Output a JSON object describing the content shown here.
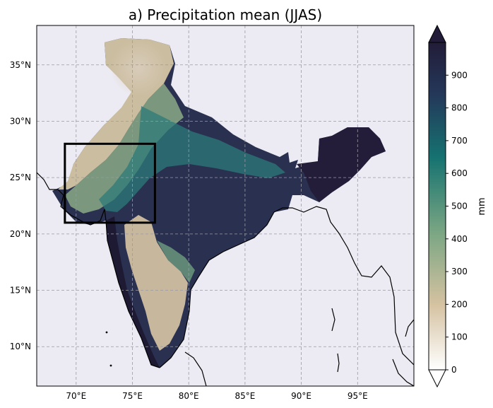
{
  "figure": {
    "title": "a) Precipitation mean (JJAS)"
  },
  "map": {
    "background_color": "#ecebf3",
    "longitude_range": [
      66.5,
      100.0
    ],
    "latitude_range": [
      6.5,
      38.5
    ],
    "x_ticks": [
      70,
      75,
      80,
      85,
      90,
      95
    ],
    "x_tick_labels": [
      "70°E",
      "75°E",
      "80°E",
      "85°E",
      "90°E",
      "95°E"
    ],
    "y_ticks": [
      10,
      15,
      20,
      25,
      30,
      35
    ],
    "y_tick_labels": [
      "10°N",
      "15°N",
      "20°N",
      "25°N",
      "30°N",
      "35°N"
    ],
    "gridlines": true,
    "coastlines": true,
    "highlight_box": {
      "lon_min": 69,
      "lon_max": 77,
      "lat_min": 21,
      "lat_max": 28
    }
  },
  "colorbar": {
    "label": "mm",
    "min": 0,
    "max": 1000,
    "ticks": [
      0,
      100,
      200,
      300,
      400,
      500,
      600,
      700,
      800,
      900
    ],
    "tick_labels": [
      "0",
      "100",
      "200",
      "300",
      "400",
      "500",
      "600",
      "700",
      "800",
      "900"
    ],
    "extend": "both",
    "colormap": [
      "#ffffff",
      "#d5c2a1",
      "#7aa683",
      "#157270",
      "#24385a",
      "#221c38"
    ]
  }
}
